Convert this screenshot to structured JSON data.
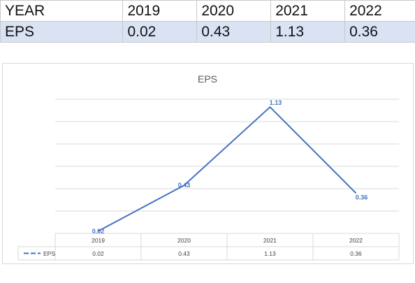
{
  "table": {
    "headers": [
      "YEAR",
      "2019",
      "2020",
      "2021",
      "2022"
    ],
    "row": [
      "EPS",
      "0.02",
      "0.43",
      "1.13",
      "0.36"
    ]
  },
  "chart_data": {
    "type": "line",
    "title": "EPS",
    "categories": [
      "2019",
      "2020",
      "2021",
      "2022"
    ],
    "series": [
      {
        "name": "EPS",
        "values": [
          0.02,
          0.43,
          1.13,
          0.36
        ],
        "color": "#4472c4"
      }
    ],
    "data_labels": [
      "0.02",
      "0.43",
      "1.13",
      "0.36"
    ],
    "data_table": {
      "row_label": "EPS",
      "values": [
        "0.02",
        "0.43",
        "1.13",
        "0.36"
      ]
    },
    "ylim": [
      0,
      1.2
    ],
    "grid": true,
    "legend": "data-table"
  }
}
